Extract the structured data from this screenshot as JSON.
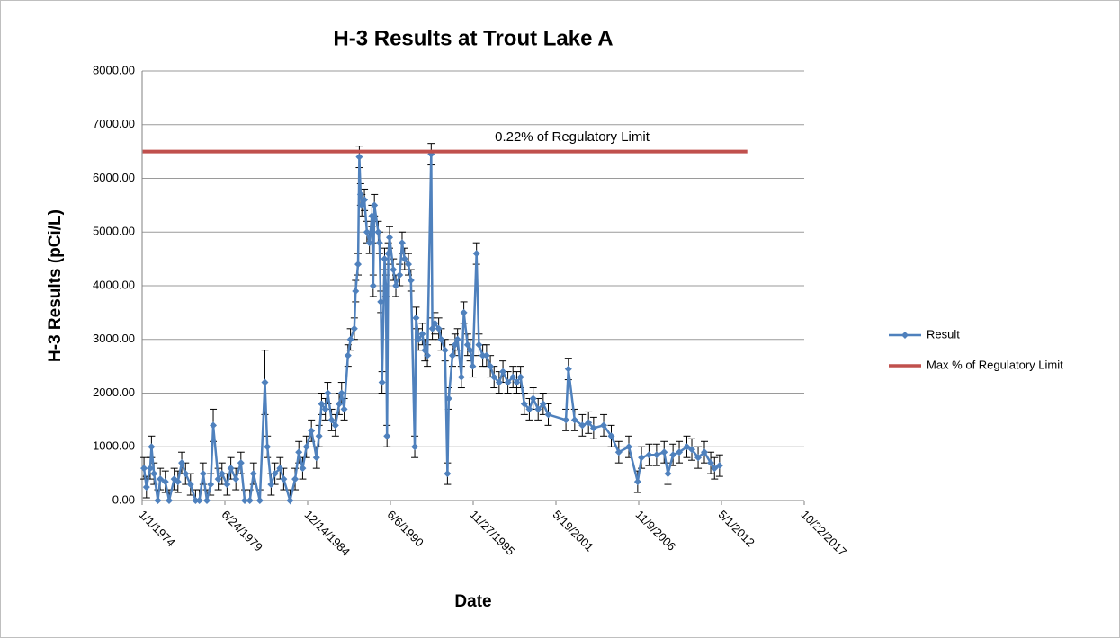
{
  "chart_data": {
    "type": "line",
    "title": "H-3 Results at Trout Lake A",
    "xlabel": "Date",
    "ylabel": "H-3 Results (pCi/L)",
    "annotation": "0.22% of Regulatory Limit",
    "grid": true,
    "legend": "right",
    "xlim": [
      "1974-01-01",
      "2017-10-22"
    ],
    "xticks": [
      {
        "value": "1974-01-01",
        "label": "1/1/1974"
      },
      {
        "value": "1979-06-24",
        "label": "6/24/1979"
      },
      {
        "value": "1984-12-14",
        "label": "12/14/1984"
      },
      {
        "value": "1990-06-06",
        "label": "6/6/1990"
      },
      {
        "value": "1995-11-27",
        "label": "11/27/1995"
      },
      {
        "value": "2001-05-19",
        "label": "5/19/2001"
      },
      {
        "value": "2006-11-09",
        "label": "11/9/2006"
      },
      {
        "value": "2012-05-01",
        "label": "5/1/2012"
      },
      {
        "value": "2017-10-22",
        "label": "10/22/2017"
      }
    ],
    "ylim": [
      0,
      8000
    ],
    "yticks": [
      {
        "value": 0,
        "label": "0.00"
      },
      {
        "value": 1000,
        "label": "1000.00"
      },
      {
        "value": 2000,
        "label": "2000.00"
      },
      {
        "value": 3000,
        "label": "3000.00"
      },
      {
        "value": 4000,
        "label": "4000.00"
      },
      {
        "value": 5000,
        "label": "5000.00"
      },
      {
        "value": 6000,
        "label": "6000.00"
      },
      {
        "value": 7000,
        "label": "7000.00"
      },
      {
        "value": 8000,
        "label": "8000.00"
      }
    ],
    "series": [
      {
        "name": "Result",
        "color": "#4f81bd",
        "marker": "diamond",
        "x": [
          "1974-02-15",
          "1974-04-15",
          "1974-07-15",
          "1974-08-15",
          "1974-10-15",
          "1975-01-15",
          "1975-03-15",
          "1975-07-15",
          "1975-10-15",
          "1976-02-15",
          "1976-05-15",
          "1976-08-15",
          "1976-11-15",
          "1977-03-15",
          "1977-07-15",
          "1977-10-15",
          "1978-01-15",
          "1978-04-15",
          "1978-07-15",
          "1978-09-15",
          "1979-01-15",
          "1979-04-15",
          "1979-08-15",
          "1979-11-15",
          "1980-03-15",
          "1980-07-15",
          "1980-10-15",
          "1981-02-15",
          "1981-05-15",
          "1981-10-15",
          "1982-02-15",
          "1982-04-15",
          "1982-07-15",
          "1982-10-15",
          "1983-02-15",
          "1983-05-15",
          "1983-10-15",
          "1984-02-15",
          "1984-05-15",
          "1984-08-15",
          "1984-11-15",
          "1985-03-15",
          "1985-07-15",
          "1985-09-15",
          "1985-11-15",
          "1986-02-15",
          "1986-04-15",
          "1986-07-15",
          "1986-10-15",
          "1987-01-15",
          "1987-03-15",
          "1987-05-15",
          "1987-08-15",
          "1987-10-15",
          "1988-01-15",
          "1988-02-15",
          "1988-04-15",
          "1988-05-15",
          "1988-06-15",
          "1988-07-15",
          "1988-09-15",
          "1988-11-15",
          "1989-01-15",
          "1989-03-15",
          "1989-04-15",
          "1989-05-15",
          "1989-08-15",
          "1989-09-15",
          "1989-10-15",
          "1989-11-15",
          "1990-01-15",
          "1990-02-15",
          "1990-03-15",
          "1990-04-15",
          "1990-05-15",
          "1990-08-15",
          "1990-10-15",
          "1991-01-15",
          "1991-03-15",
          "1991-05-15",
          "1991-08-15",
          "1991-10-15",
          "1992-01-15",
          "1992-02-15",
          "1992-04-15",
          "1992-07-15",
          "1992-09-15",
          "1992-11-15",
          "1993-02-15",
          "1993-03-15",
          "1993-05-15",
          "1993-08-15",
          "1993-10-15",
          "1994-01-15",
          "1994-03-15",
          "1994-04-15",
          "1994-07-15",
          "1994-09-15",
          "1994-11-15",
          "1995-02-15",
          "1995-04-15",
          "1995-07-15",
          "1995-09-15",
          "1995-11-15",
          "1996-02-15",
          "1996-04-15",
          "1996-07-15",
          "1996-10-15",
          "1997-01-15",
          "1997-04-15",
          "1997-08-15",
          "1997-11-15",
          "1998-03-15",
          "1998-07-15",
          "1998-10-15",
          "1999-01-15",
          "1999-04-15",
          "1999-08-15",
          "1999-11-15",
          "2000-03-15",
          "2000-07-15",
          "2000-11-15",
          "2002-01-15",
          "2002-03-15",
          "2002-08-15",
          "2003-02-15",
          "2003-07-15",
          "2003-11-15",
          "2004-07-15",
          "2005-01-15",
          "2005-07-15",
          "2006-03-15",
          "2006-10-15",
          "2007-01-15",
          "2007-07-15",
          "2008-01-15",
          "2008-07-15",
          "2008-10-15",
          "2009-02-15",
          "2009-07-15",
          "2010-01-15",
          "2010-05-15",
          "2010-10-15",
          "2011-03-15",
          "2011-08-15",
          "2011-11-15",
          "2012-03-15"
        ],
        "values": [
          600,
          250,
          600,
          1000,
          500,
          0,
          400,
          350,
          0,
          400,
          350,
          700,
          500,
          300,
          0,
          0,
          500,
          0,
          300,
          1400,
          400,
          500,
          300,
          600,
          400,
          700,
          0,
          0,
          500,
          0,
          2200,
          1000,
          300,
          500,
          600,
          400,
          0,
          400,
          900,
          600,
          1000,
          1300,
          800,
          1200,
          1800,
          1700,
          2000,
          1500,
          1400,
          1800,
          2000,
          1700,
          2700,
          3000,
          3200,
          3900,
          4400,
          6400,
          5700,
          5500,
          5600,
          5000,
          4800,
          5300,
          4000,
          5500,
          5000,
          4800,
          3700,
          2200,
          4500,
          4000,
          1200,
          4600,
          4900,
          4300,
          4000,
          4200,
          4800,
          4500,
          4400,
          4100,
          1000,
          3400,
          3000,
          3100,
          2800,
          2700,
          6450,
          3200,
          3300,
          3200,
          3000,
          2800,
          500,
          1900,
          2700,
          2900,
          3000,
          2300,
          3500,
          2900,
          2800,
          2500,
          4600,
          2900,
          2700,
          2700,
          2500,
          2300,
          2200,
          2400,
          2200,
          2300,
          2200,
          2300,
          1800,
          1700,
          1900,
          1700,
          1800,
          1600,
          1500,
          2450,
          1500,
          1400,
          1450,
          1350,
          1400,
          1200,
          900,
          1000,
          350,
          800,
          850,
          850,
          900,
          500,
          850,
          900,
          1000,
          950,
          800,
          900,
          700,
          600,
          650
        ],
        "errors": [
          200,
          200,
          200,
          200,
          200,
          200,
          200,
          200,
          200,
          200,
          200,
          200,
          200,
          200,
          200,
          200,
          200,
          200,
          200,
          300,
          200,
          200,
          200,
          200,
          200,
          200,
          200,
          200,
          200,
          200,
          600,
          200,
          200,
          200,
          200,
          200,
          200,
          200,
          200,
          200,
          200,
          200,
          200,
          200,
          200,
          200,
          200,
          200,
          200,
          200,
          200,
          200,
          200,
          200,
          200,
          200,
          200,
          200,
          200,
          200,
          200,
          200,
          200,
          200,
          200,
          200,
          200,
          200,
          200,
          200,
          200,
          200,
          200,
          200,
          200,
          200,
          200,
          200,
          200,
          200,
          200,
          200,
          200,
          200,
          200,
          200,
          200,
          200,
          200,
          200,
          200,
          200,
          200,
          200,
          200,
          200,
          200,
          200,
          200,
          200,
          200,
          200,
          200,
          200,
          200,
          200,
          200,
          200,
          200,
          200,
          200,
          200,
          200,
          200,
          200,
          200,
          200,
          200,
          200,
          200,
          200,
          200,
          200,
          200,
          200,
          200,
          200,
          200,
          200,
          200,
          200,
          200,
          200,
          200,
          200,
          200,
          200,
          200,
          200,
          200,
          200,
          200,
          200,
          200,
          200,
          200,
          200
        ]
      },
      {
        "name": "Max % of Regulatory Limit",
        "color": "#c0504d",
        "x": [
          "1974-01-15",
          "2014-01-15"
        ],
        "values": [
          6500,
          6500
        ]
      }
    ]
  }
}
